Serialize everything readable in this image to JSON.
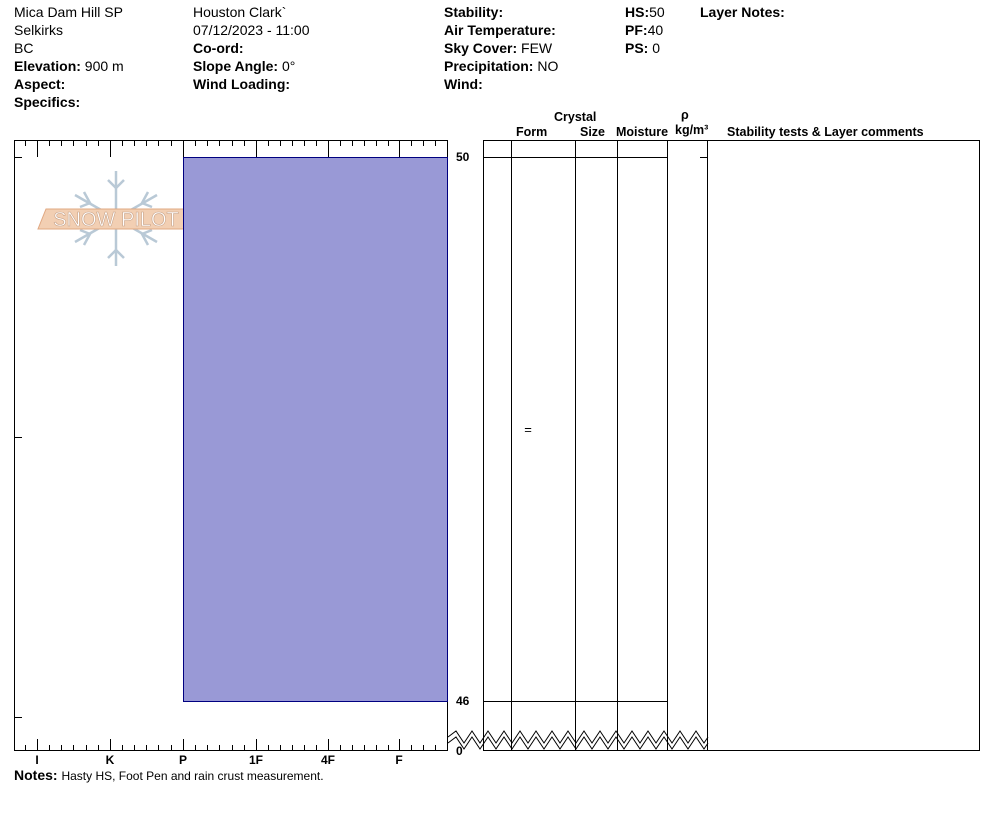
{
  "header": {
    "location": "Mica Dam Hill SP",
    "range": "Selkirks",
    "province": "BC",
    "elevation_label": "Elevation:",
    "elevation_value": "900 m",
    "aspect_label": "Aspect:",
    "specifics_label": "Specifics:",
    "observer": "Houston Clark`",
    "datetime": "07/12/2023 - 11:00",
    "coord_label": "Co-ord:",
    "slope_label": "Slope Angle:",
    "slope_value": "0°",
    "wind_loading_label": "Wind Loading:",
    "stability_label": "Stability:",
    "air_temp_label": "Air Temperature:",
    "sky_cover_label": "Sky Cover:",
    "sky_cover_value": "FEW",
    "precip_label": "Precipitation:",
    "precip_value": "NO",
    "wind_label": "Wind:",
    "hs_label": "HS:",
    "hs_value": "50",
    "pf_label": "PF:",
    "pf_value": "40",
    "ps_label": "PS:",
    "ps_value": "0",
    "layer_notes_label": "Layer Notes:"
  },
  "watermark": {
    "text": "SNOW PILOT"
  },
  "columns": {
    "crystal": "Crystal",
    "form": "Form",
    "size": "Size",
    "moisture": "Moisture",
    "rho": "ρ",
    "density_unit": "kg/m³",
    "stability": "Stability tests & Layer comments"
  },
  "notes": {
    "label": "Notes:",
    "text": "Hasty HS, Foot Pen and rain crust measurement."
  },
  "colors": {
    "layer_fill": "#9999d6",
    "layer_stroke": "#000080"
  },
  "chart_data": {
    "type": "bar",
    "hardness_scale": [
      "I",
      "K",
      "P",
      "1F",
      "4F",
      "F"
    ],
    "height_axis": {
      "top": 50,
      "bottom": 0,
      "break_below": 46,
      "tick_labels": [
        "50",
        "46",
        "0"
      ]
    },
    "layers": [
      {
        "top": 50,
        "bottom": 46,
        "hardness": "P",
        "form": "="
      }
    ]
  }
}
